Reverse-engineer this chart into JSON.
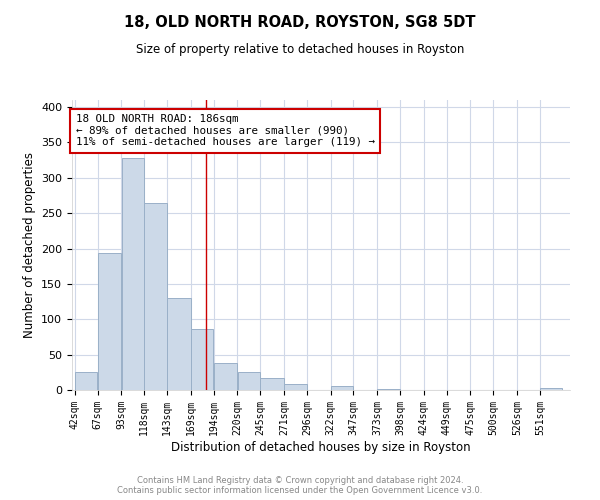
{
  "title": "18, OLD NORTH ROAD, ROYSTON, SG8 5DT",
  "subtitle": "Size of property relative to detached houses in Royston",
  "xlabel": "Distribution of detached houses by size in Royston",
  "ylabel": "Number of detached properties",
  "bar_labels": [
    "42sqm",
    "67sqm",
    "93sqm",
    "118sqm",
    "143sqm",
    "169sqm",
    "194sqm",
    "220sqm",
    "245sqm",
    "271sqm",
    "296sqm",
    "322sqm",
    "347sqm",
    "373sqm",
    "398sqm",
    "424sqm",
    "449sqm",
    "475sqm",
    "500sqm",
    "526sqm",
    "551sqm"
  ],
  "bar_values": [
    25,
    193,
    328,
    265,
    130,
    86,
    38,
    26,
    17,
    8,
    0,
    5,
    0,
    2,
    0,
    0,
    0,
    0,
    0,
    0,
    3
  ],
  "bar_color": "#ccd9e8",
  "bar_edge_color": "#9ab0c8",
  "property_line_x": 186,
  "bin_edges": [
    42,
    67,
    93,
    118,
    143,
    169,
    194,
    220,
    245,
    271,
    296,
    322,
    347,
    373,
    398,
    424,
    449,
    475,
    500,
    526,
    551,
    576
  ],
  "annotation_title": "18 OLD NORTH ROAD: 186sqm",
  "annotation_line1": "← 89% of detached houses are smaller (990)",
  "annotation_line2": "11% of semi-detached houses are larger (119) →",
  "annotation_box_color": "#ffffff",
  "annotation_box_edge": "#cc0000",
  "vline_color": "#cc0000",
  "ylim": [
    0,
    410
  ],
  "yticks": [
    0,
    50,
    100,
    150,
    200,
    250,
    300,
    350,
    400
  ],
  "footer1": "Contains HM Land Registry data © Crown copyright and database right 2024.",
  "footer2": "Contains public sector information licensed under the Open Government Licence v3.0.",
  "bg_color": "#ffffff",
  "grid_color": "#d0d8e8"
}
